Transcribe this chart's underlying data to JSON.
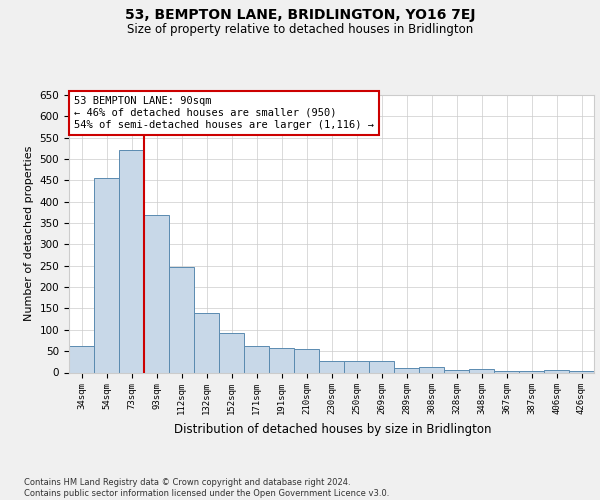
{
  "title": "53, BEMPTON LANE, BRIDLINGTON, YO16 7EJ",
  "subtitle": "Size of property relative to detached houses in Bridlington",
  "xlabel": "Distribution of detached houses by size in Bridlington",
  "ylabel": "Number of detached properties",
  "categories": [
    "34sqm",
    "54sqm",
    "73sqm",
    "93sqm",
    "112sqm",
    "132sqm",
    "152sqm",
    "171sqm",
    "191sqm",
    "210sqm",
    "230sqm",
    "250sqm",
    "269sqm",
    "289sqm",
    "308sqm",
    "328sqm",
    "348sqm",
    "367sqm",
    "387sqm",
    "406sqm",
    "426sqm"
  ],
  "values": [
    62,
    456,
    522,
    370,
    248,
    140,
    92,
    62,
    57,
    55,
    26,
    26,
    26,
    11,
    12,
    6,
    9,
    3,
    3,
    5,
    3
  ],
  "bar_color": "#c8d8e8",
  "bar_edge_color": "#5a8ab0",
  "grid_color": "#cccccc",
  "vline_x": 2.5,
  "vline_color": "#cc0000",
  "annotation_text": "53 BEMPTON LANE: 90sqm\n← 46% of detached houses are smaller (950)\n54% of semi-detached houses are larger (1,116) →",
  "annotation_box_color": "#ffffff",
  "annotation_box_edge": "#cc0000",
  "ylim": [
    0,
    650
  ],
  "yticks": [
    0,
    50,
    100,
    150,
    200,
    250,
    300,
    350,
    400,
    450,
    500,
    550,
    600,
    650
  ],
  "footer": "Contains HM Land Registry data © Crown copyright and database right 2024.\nContains public sector information licensed under the Open Government Licence v3.0.",
  "bg_color": "#f0f0f0",
  "plot_bg_color": "#ffffff"
}
